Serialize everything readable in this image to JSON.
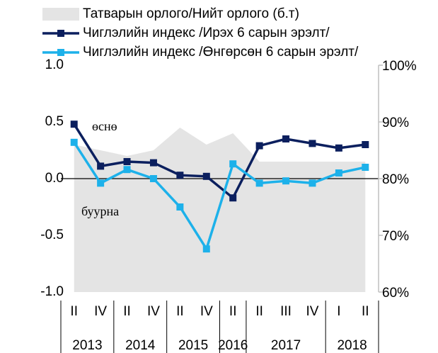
{
  "chart_data": {
    "type": "line",
    "categories": [
      "II",
      "IV",
      "II",
      "IV",
      "II",
      "IV",
      "II",
      "II",
      "III",
      "IV",
      "I",
      "II"
    ],
    "years": [
      "2013",
      null,
      "2014",
      null,
      "2015",
      null,
      "2016",
      "2017",
      null,
      null,
      "2018",
      null
    ],
    "series": [
      {
        "name": "Татварын орлого/Нийт орлого (б.т)",
        "type": "area",
        "axis": "y2",
        "color": "#e4e4e4",
        "values": [
          86,
          85,
          84,
          85,
          89,
          86,
          88,
          83,
          83,
          83,
          83,
          83
        ]
      },
      {
        "name": "Чиглэлийн индекс /Ирэх 6 сарын эрэлт/",
        "type": "line",
        "color": "#0b1f5e",
        "values": [
          0.48,
          0.11,
          0.15,
          0.14,
          0.03,
          0.02,
          -0.17,
          0.29,
          0.35,
          0.31,
          0.27,
          0.3
        ]
      },
      {
        "name": "Чиглэлийн индекс /Өнгөрсөн 6 сарын эрэлт/",
        "type": "line",
        "color": "#1db1ea",
        "values": [
          0.32,
          -0.04,
          0.08,
          0.0,
          -0.25,
          -0.62,
          0.13,
          -0.04,
          -0.02,
          -0.04,
          0.05,
          0.1
        ]
      }
    ],
    "ylim": [
      -1,
      1
    ],
    "yticks": [
      {
        "value": -1,
        "label": "-1.0"
      },
      {
        "value": -0.5,
        "label": "-0.5"
      },
      {
        "value": 0,
        "label": "0.0"
      },
      {
        "value": 0.5,
        "label": "0.5"
      },
      {
        "value": 1,
        "label": "1.0"
      }
    ],
    "y2lim": [
      60,
      100
    ],
    "y2ticks": [
      {
        "value": 60,
        "label": "60%"
      },
      {
        "value": 70,
        "label": "70%"
      },
      {
        "value": 80,
        "label": "80%"
      },
      {
        "value": 90,
        "label": "90%"
      },
      {
        "value": 100,
        "label": "100%"
      }
    ],
    "annotations": [
      {
        "text": "өснө"
      },
      {
        "text": "буурна"
      }
    ]
  }
}
